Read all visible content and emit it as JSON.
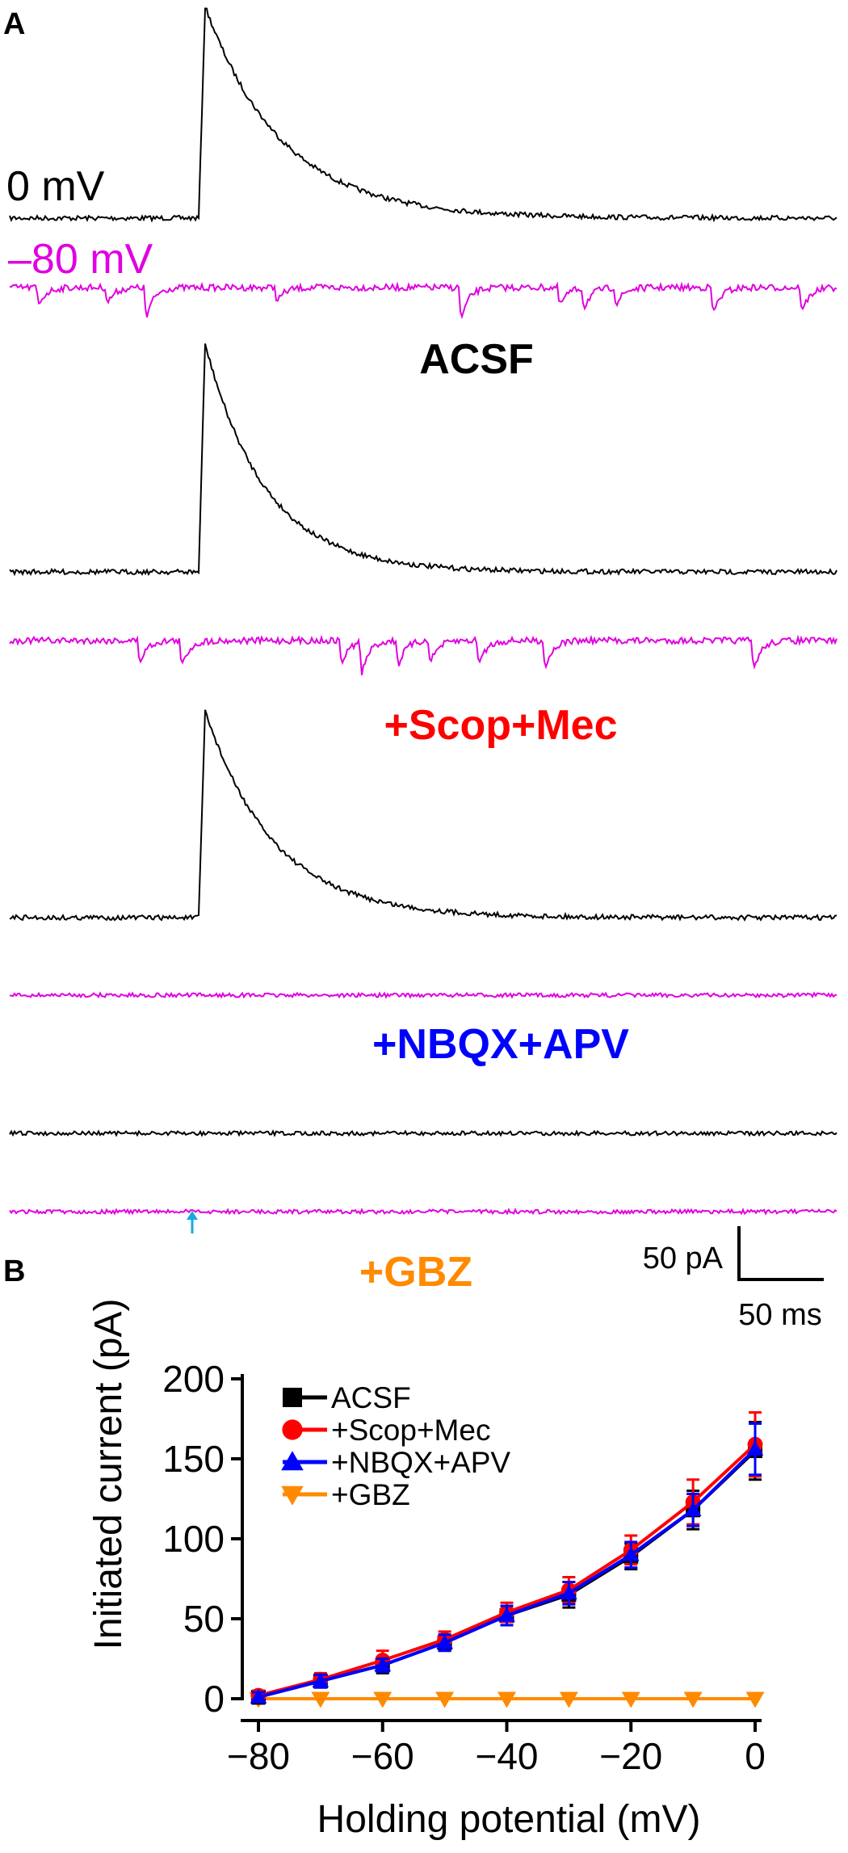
{
  "panel_a": {
    "panel_label": "A",
    "trace_labels": {
      "depolarized": "0 mV",
      "hyperpolarized": "–80 mV"
    },
    "conditions": [
      {
        "name": "ACSF",
        "color": "#000000"
      },
      {
        "name": "+Scop+Mec",
        "color": "#ff0000"
      },
      {
        "name": "+NBQX+APV",
        "color": "#0000ff"
      },
      {
        "name": "+GBZ",
        "color": "#ff8a00"
      }
    ],
    "trace_colors": {
      "depolarized": "#000000",
      "hyperpolarized": "#e000e0"
    },
    "stimulus_marker_color": "#1aa8e0",
    "scale_bar": {
      "current_label": "50 pA",
      "time_label": "50 ms",
      "current_pA": 50,
      "time_ms": 50
    }
  },
  "chart_data": {
    "panel_label": "B",
    "type": "line",
    "xlabel": "Holding potential (mV)",
    "ylabel": "Initiated current (pA)",
    "xlim": [
      -80,
      0
    ],
    "ylim": [
      0,
      200
    ],
    "xticks": [
      -80,
      -60,
      -40,
      -20,
      0
    ],
    "yticks": [
      0,
      50,
      100,
      150,
      200
    ],
    "grid": false,
    "legend_position": "top-left",
    "x": [
      -80,
      -70,
      -60,
      -50,
      -40,
      -30,
      -20,
      -10,
      0
    ],
    "series": [
      {
        "name": "ACSF",
        "color": "#000000",
        "marker": "square",
        "values": [
          1,
          11,
          21,
          35,
          52,
          65,
          89,
          118,
          155
        ],
        "errors": [
          4,
          4,
          5,
          5,
          6,
          8,
          8,
          12,
          18
        ]
      },
      {
        "name": "+Scop+Mec",
        "color": "#ff0000",
        "marker": "circle",
        "values": [
          2,
          12,
          24,
          37,
          54,
          68,
          93,
          123,
          159
        ],
        "errors": [
          3,
          4,
          6,
          5,
          6,
          8,
          9,
          14,
          20
        ]
      },
      {
        "name": "+NBQX+APV",
        "color": "#0000ff",
        "marker": "triangle-up",
        "values": [
          1,
          11,
          21,
          35,
          52,
          66,
          90,
          118,
          156
        ],
        "errors": [
          3,
          4,
          4,
          5,
          6,
          7,
          8,
          10,
          16
        ]
      },
      {
        "name": "+GBZ",
        "color": "#ff8a00",
        "marker": "triangle-down",
        "values": [
          0,
          0,
          0,
          0,
          0,
          0,
          0,
          0,
          0
        ],
        "errors": [
          0,
          0,
          0,
          0,
          0,
          0,
          0,
          0,
          0
        ]
      }
    ]
  }
}
